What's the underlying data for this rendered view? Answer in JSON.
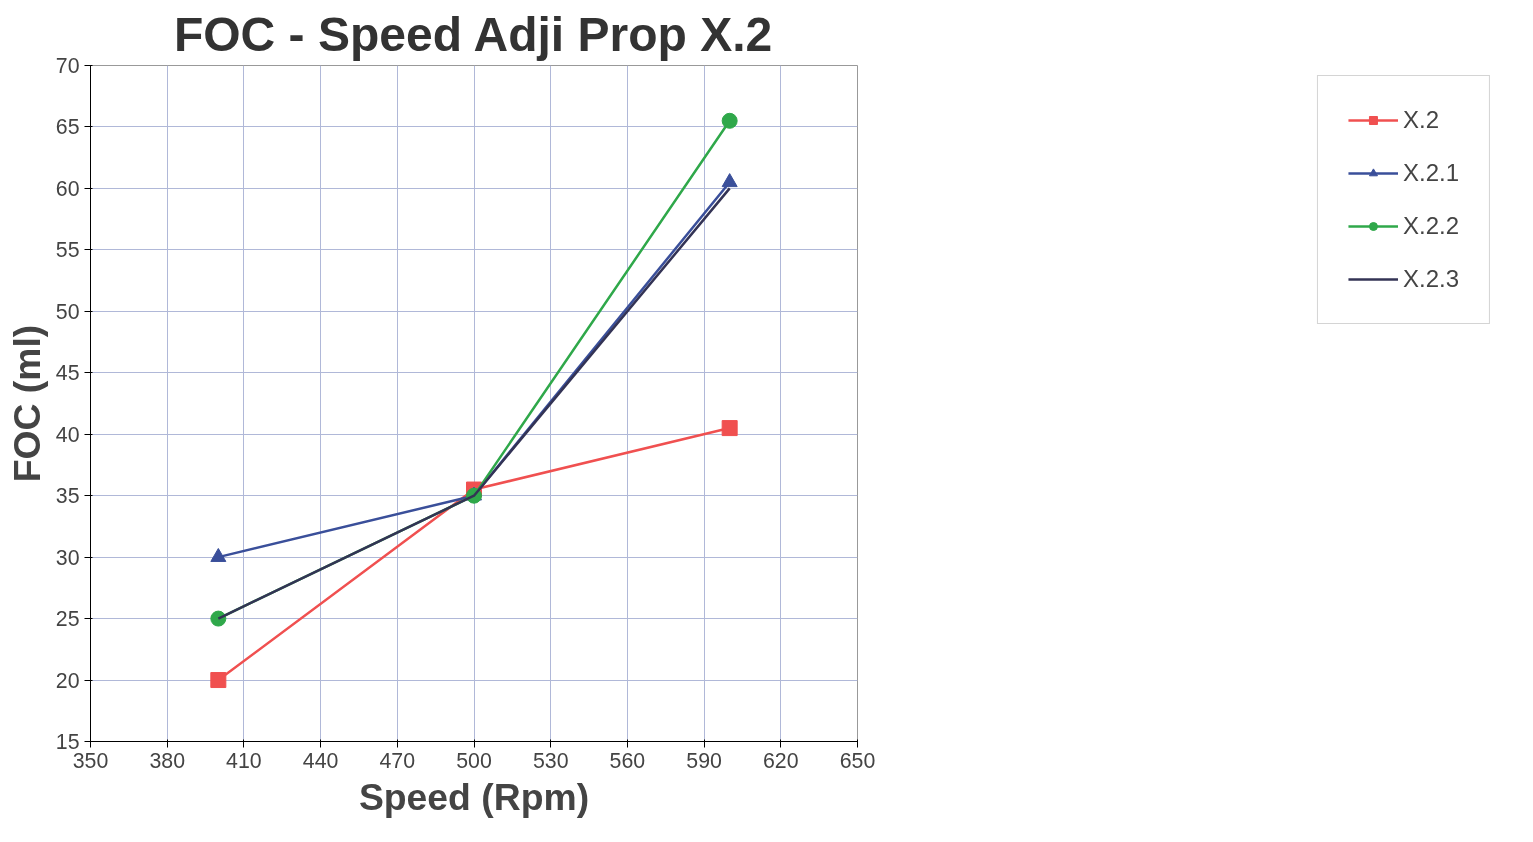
{
  "chart_data": {
    "type": "line",
    "title": "FOC - Speed Adji Prop X.2",
    "xlabel": "Speed (Rpm)",
    "ylabel": "FOC (ml)",
    "xlim": [
      350,
      650
    ],
    "xticks": [
      350,
      380,
      410,
      440,
      470,
      500,
      530,
      560,
      590,
      620,
      650
    ],
    "ylim": [
      15,
      70
    ],
    "yticks": [
      15,
      20,
      25,
      30,
      35,
      40,
      45,
      50,
      55,
      60,
      65,
      70
    ],
    "grid": true,
    "legend": "right",
    "series": [
      {
        "name": "X.2",
        "color": "#f05050",
        "marker": "square",
        "x": [
          400,
          500,
          600
        ],
        "values": [
          20,
          35.5,
          40.5
        ]
      },
      {
        "name": "X.2.1",
        "color": "#3a4f9a",
        "marker": "triangle",
        "x": [
          400,
          500,
          600
        ],
        "values": [
          30,
          35,
          60.5
        ]
      },
      {
        "name": "X.2.2",
        "color": "#2fa84a",
        "marker": "circle",
        "x": [
          400,
          500,
          600
        ],
        "values": [
          25,
          35,
          65.5
        ]
      },
      {
        "name": "X.2.3",
        "color": "#333355",
        "marker": "none",
        "x": [
          400,
          500,
          600
        ],
        "values": [
          25,
          35,
          60
        ]
      }
    ]
  }
}
